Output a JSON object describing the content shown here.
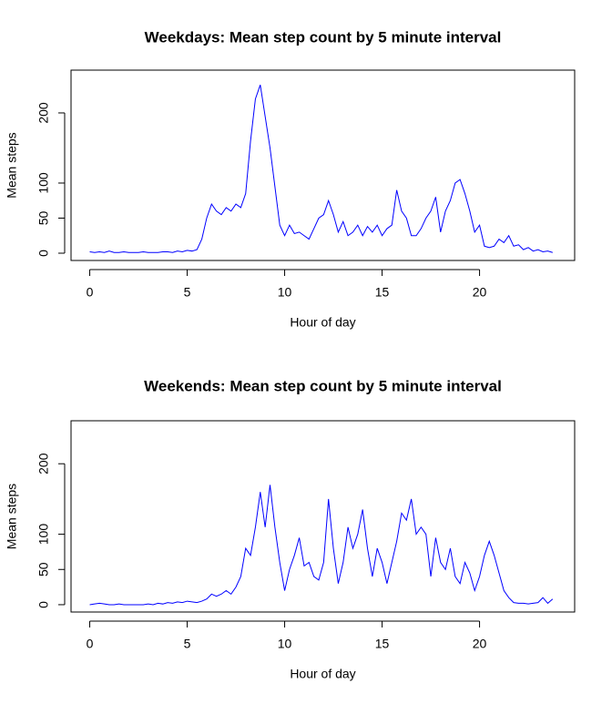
{
  "chart_data": [
    {
      "type": "line",
      "title": "Weekdays: Mean step count by 5 minute interval",
      "xlabel": "Hour of day",
      "ylabel": "Mean steps",
      "x": [
        0,
        0.25,
        0.5,
        0.75,
        1,
        1.25,
        1.5,
        1.75,
        2,
        2.25,
        2.5,
        2.75,
        3,
        3.25,
        3.5,
        3.75,
        4,
        4.25,
        4.5,
        4.75,
        5,
        5.25,
        5.5,
        5.75,
        6,
        6.25,
        6.5,
        6.75,
        7,
        7.25,
        7.5,
        7.75,
        8,
        8.25,
        8.5,
        8.75,
        9,
        9.25,
        9.5,
        9.75,
        10,
        10.25,
        10.5,
        10.75,
        11,
        11.25,
        11.5,
        11.75,
        12,
        12.25,
        12.5,
        12.75,
        13,
        13.25,
        13.5,
        13.75,
        14,
        14.25,
        14.5,
        14.75,
        15,
        15.25,
        15.5,
        15.75,
        16,
        16.25,
        16.5,
        16.75,
        17,
        17.25,
        17.5,
        17.75,
        18,
        18.25,
        18.5,
        18.75,
        19,
        19.25,
        19.5,
        19.75,
        20,
        20.25,
        20.5,
        20.75,
        21,
        21.25,
        21.5,
        21.75,
        22,
        22.25,
        22.5,
        22.75,
        23,
        23.25,
        23.5,
        23.75
      ],
      "values": [
        2,
        1,
        2,
        1,
        3,
        1,
        1,
        2,
        1,
        1,
        1,
        2,
        1,
        1,
        1,
        2,
        2,
        1,
        3,
        2,
        4,
        3,
        5,
        20,
        50,
        70,
        60,
        55,
        65,
        60,
        70,
        65,
        85,
        160,
        220,
        240,
        195,
        150,
        95,
        40,
        25,
        40,
        28,
        30,
        25,
        20,
        35,
        50,
        55,
        75,
        55,
        30,
        45,
        25,
        30,
        40,
        25,
        38,
        30,
        40,
        25,
        35,
        40,
        90,
        60,
        50,
        25,
        25,
        35,
        50,
        60,
        80,
        30,
        60,
        75,
        100,
        105,
        85,
        60,
        30,
        40,
        10,
        8,
        10,
        20,
        15,
        25,
        10,
        12,
        5,
        8,
        3,
        5,
        2,
        3,
        1
      ],
      "color": "#0000ff",
      "xlim": [
        -0.96,
        24.88
      ],
      "ylim": [
        -10.4,
        261
      ],
      "xticks": [
        0,
        5,
        10,
        15,
        20
      ],
      "yticks": [
        0,
        50,
        100,
        200
      ]
    },
    {
      "type": "line",
      "title": "Weekends: Mean step count by 5 minute interval",
      "xlabel": "Hour of day",
      "ylabel": "Mean steps",
      "x": [
        0,
        0.25,
        0.5,
        0.75,
        1,
        1.25,
        1.5,
        1.75,
        2,
        2.25,
        2.5,
        2.75,
        3,
        3.25,
        3.5,
        3.75,
        4,
        4.25,
        4.5,
        4.75,
        5,
        5.25,
        5.5,
        5.75,
        6,
        6.25,
        6.5,
        6.75,
        7,
        7.25,
        7.5,
        7.75,
        8,
        8.25,
        8.5,
        8.75,
        9,
        9.25,
        9.5,
        9.75,
        10,
        10.25,
        10.5,
        10.75,
        11,
        11.25,
        11.5,
        11.75,
        12,
        12.25,
        12.5,
        12.75,
        13,
        13.25,
        13.5,
        13.75,
        14,
        14.25,
        14.5,
        14.75,
        15,
        15.25,
        15.5,
        15.75,
        16,
        16.25,
        16.5,
        16.75,
        17,
        17.25,
        17.5,
        17.75,
        18,
        18.25,
        18.5,
        18.75,
        19,
        19.25,
        19.5,
        19.75,
        20,
        20.25,
        20.5,
        20.75,
        21,
        21.25,
        21.5,
        21.75,
        22,
        22.25,
        22.5,
        22.75,
        23,
        23.25,
        23.5,
        23.75
      ],
      "values": [
        0,
        1,
        2,
        1,
        0,
        0,
        1,
        0,
        0,
        0,
        0,
        0,
        1,
        0,
        2,
        1,
        3,
        2,
        4,
        3,
        5,
        4,
        3,
        5,
        8,
        15,
        12,
        15,
        20,
        15,
        25,
        40,
        80,
        70,
        110,
        160,
        110,
        170,
        110,
        60,
        20,
        50,
        70,
        95,
        55,
        60,
        40,
        35,
        60,
        150,
        80,
        30,
        60,
        110,
        80,
        100,
        135,
        80,
        40,
        80,
        60,
        30,
        60,
        90,
        130,
        120,
        150,
        100,
        110,
        100,
        40,
        95,
        60,
        50,
        80,
        40,
        30,
        60,
        45,
        20,
        40,
        70,
        90,
        70,
        45,
        20,
        10,
        3,
        2,
        2,
        1,
        2,
        3,
        10,
        2,
        8
      ],
      "color": "#0000ff",
      "xlim": [
        -0.96,
        24.88
      ],
      "ylim": [
        -10.4,
        261
      ],
      "xticks": [
        0,
        5,
        10,
        15,
        20
      ],
      "yticks": [
        0,
        50,
        100,
        200
      ]
    }
  ]
}
